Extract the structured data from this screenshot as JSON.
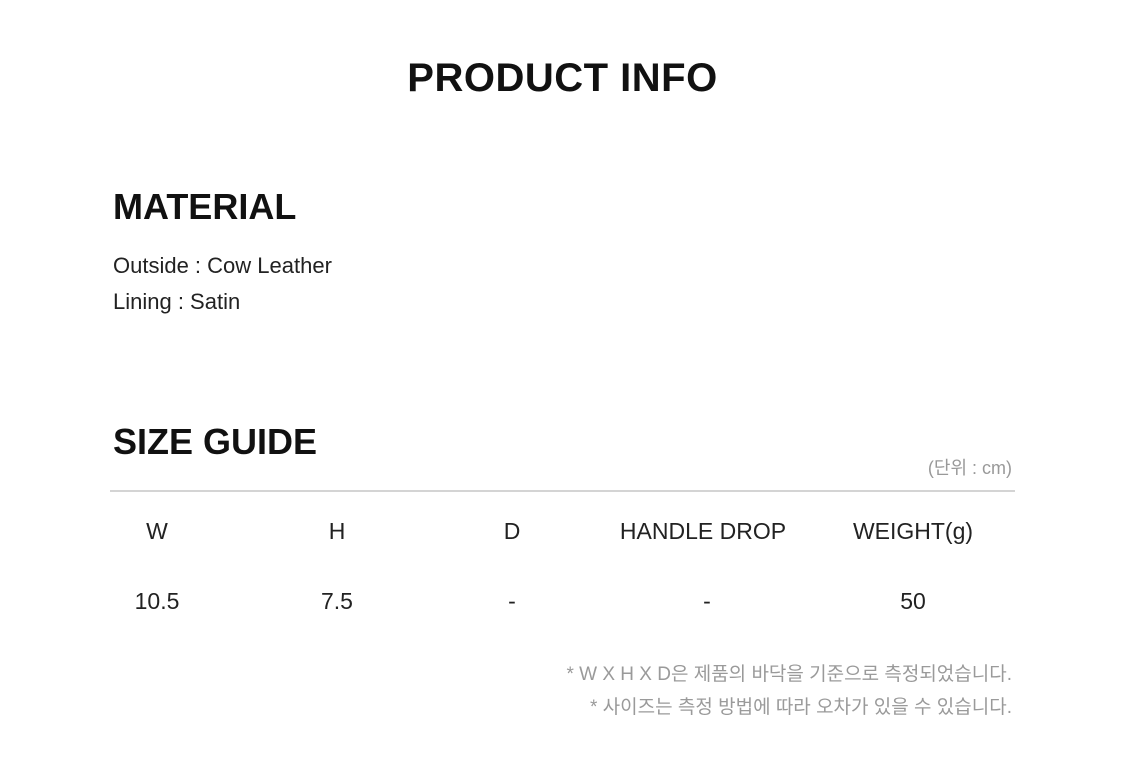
{
  "title": "PRODUCT INFO",
  "material": {
    "heading": "MATERIAL",
    "lines": [
      "Outside : Cow Leather",
      "Lining : Satin"
    ]
  },
  "size_guide": {
    "heading": "SIZE GUIDE",
    "unit": "(단위 : cm)",
    "headers": [
      "W",
      "H",
      "D",
      "HANDLE DROP",
      "WEIGHT(g)"
    ],
    "values": [
      "10.5",
      "7.5",
      "-",
      "-",
      "50"
    ],
    "notes": [
      "* W X H X D은 제품의 바닥을 기준으로 측정되었습니다.",
      "* 사이즈는 측정 방법에 따라 오차가 있을 수 있습니다."
    ]
  }
}
